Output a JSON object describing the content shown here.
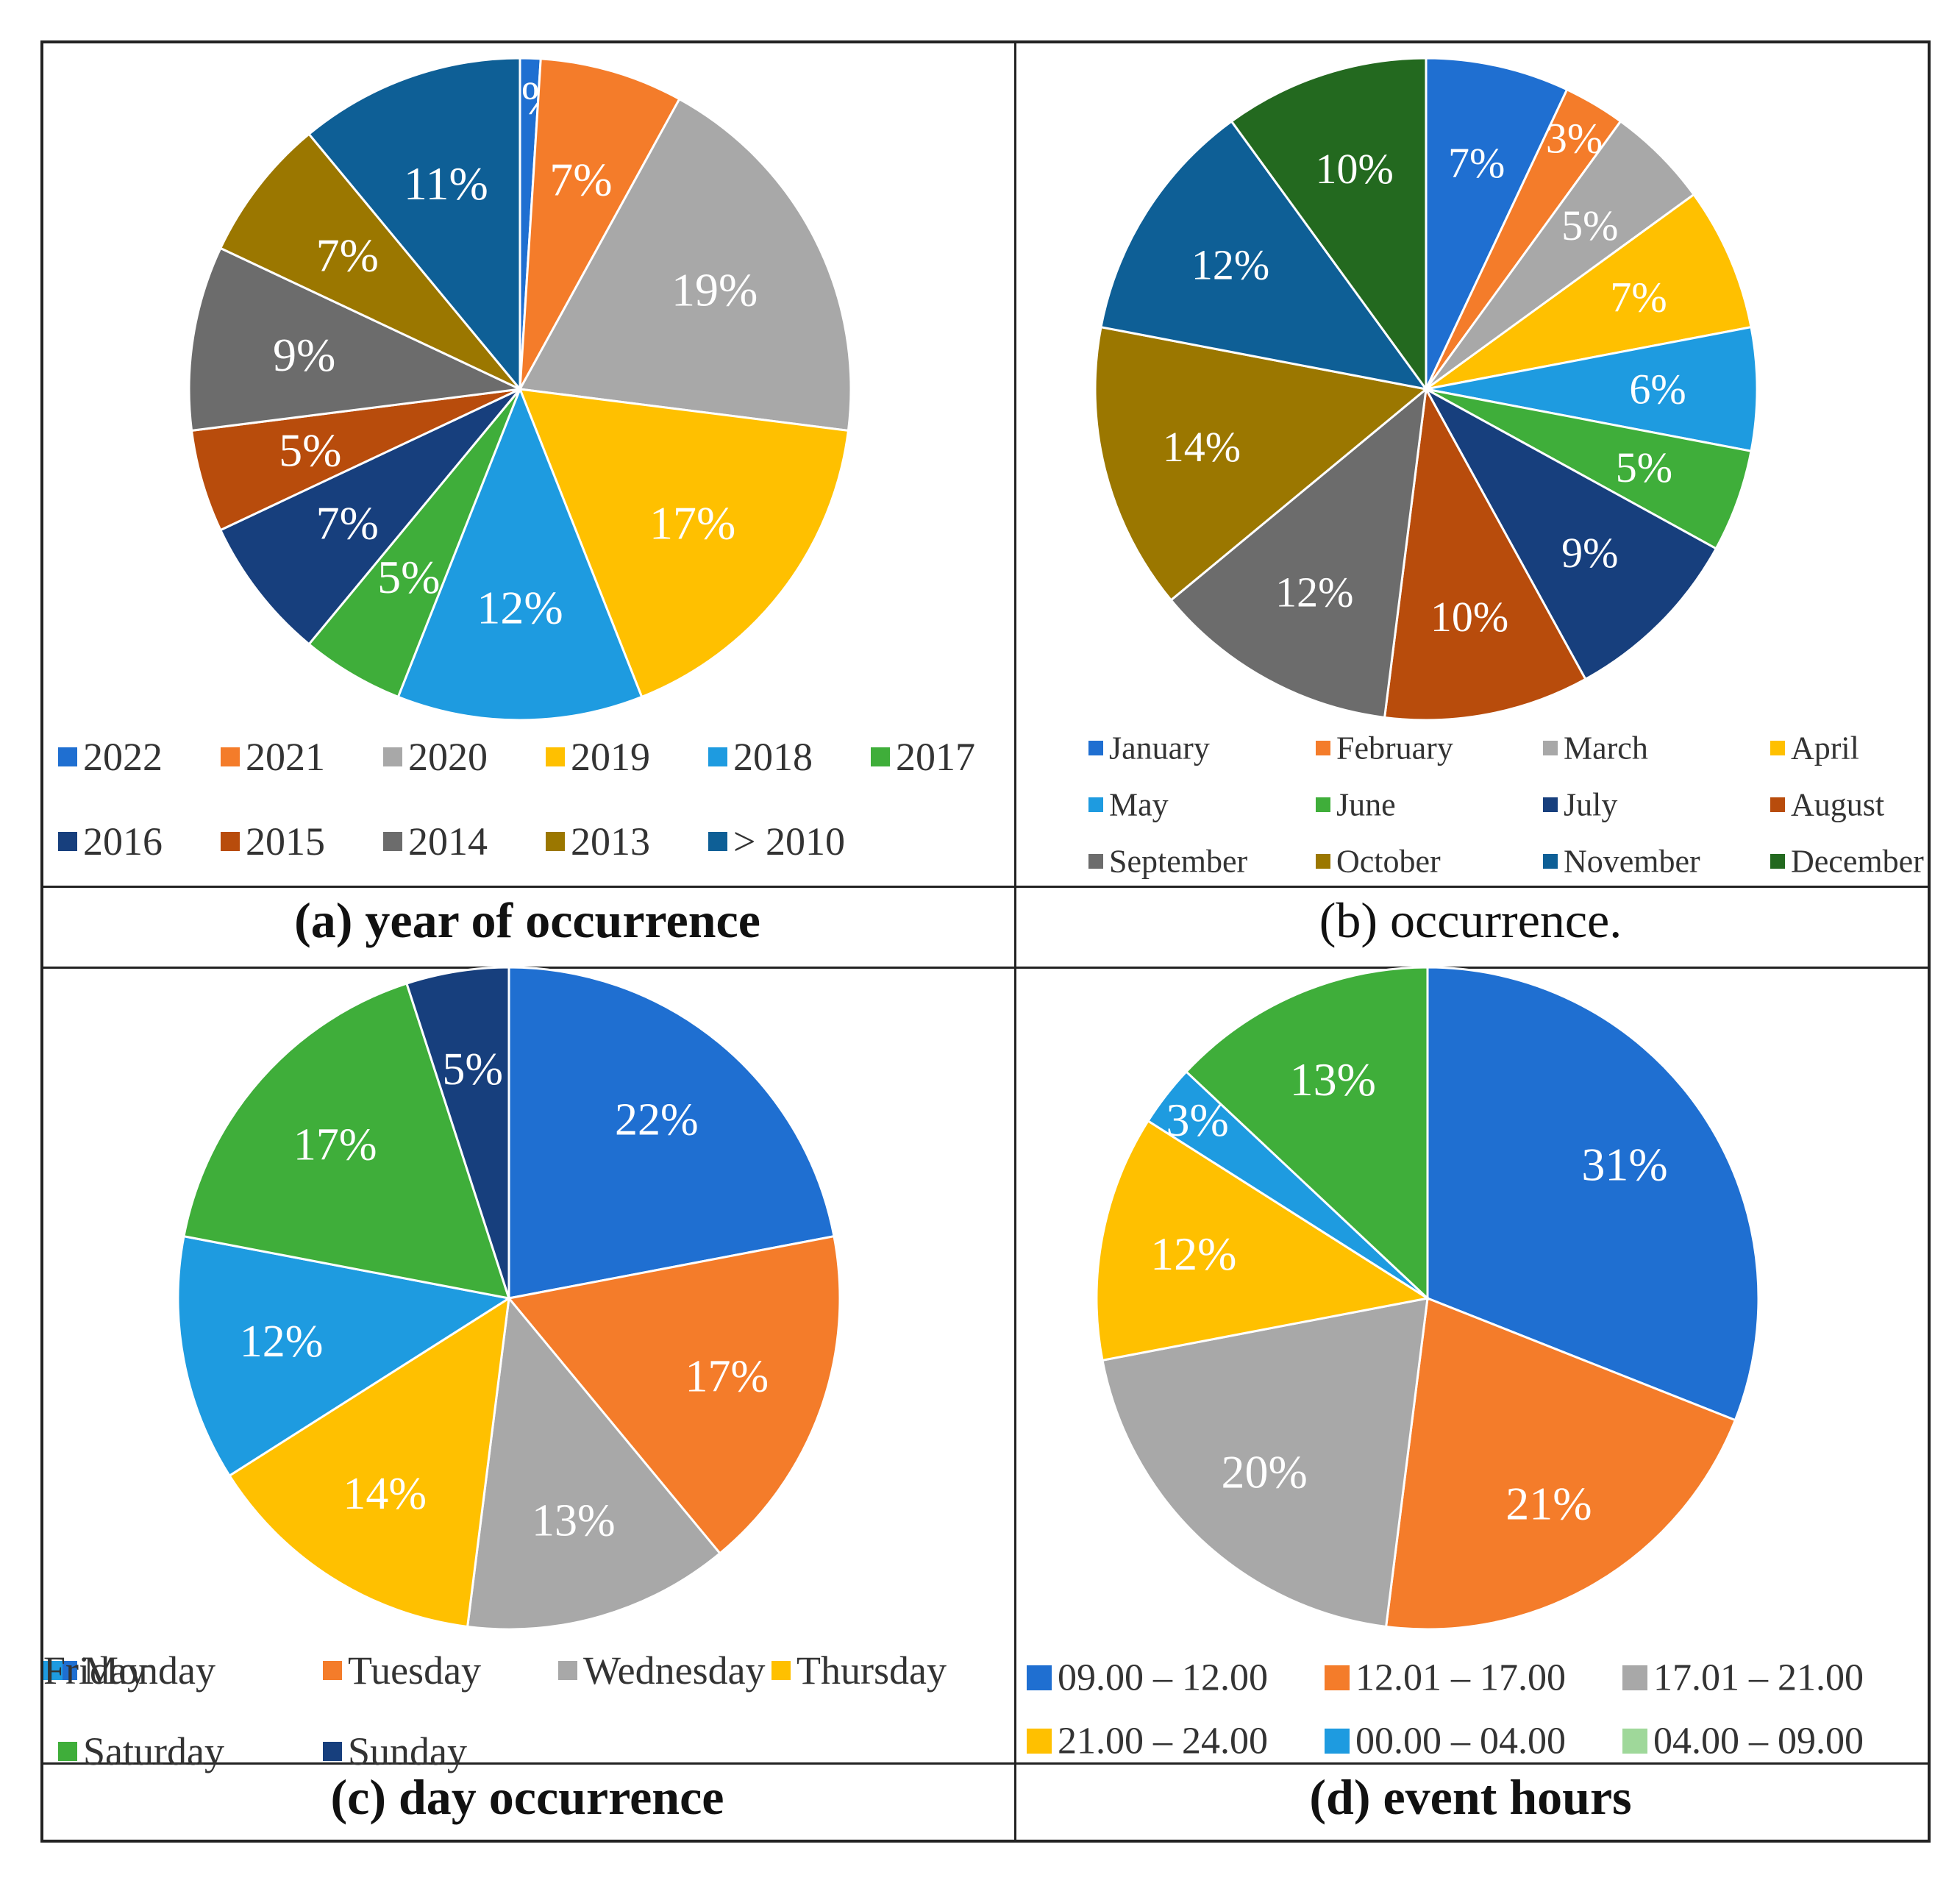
{
  "chart_data": [
    {
      "type": "pie",
      "title": "(a) year of occurrence",
      "categories": [
        "2022",
        "2021",
        "2020",
        "2019",
        "2018",
        "2017",
        "2016",
        "2015",
        "2014",
        "2013",
        "> 2010"
      ],
      "values": [
        1,
        7,
        19,
        17,
        12,
        5,
        7,
        5,
        9,
        7,
        11
      ],
      "labels": [
        "1%",
        "7%",
        "19%",
        "17%",
        "12%",
        "5%",
        "7%",
        "5%",
        "9%",
        "7%",
        "11%"
      ],
      "colors": [
        "#1f6fd1",
        "#f47c2a",
        "#a8a8a8",
        "#ffc000",
        "#1e9be0",
        "#3fae3a",
        "#173f7d",
        "#b84c0c",
        "#6c6c6c",
        "#9b7700",
        "#0e5f96"
      ],
      "legend": "bottom"
    },
    {
      "type": "pie",
      "title": "(b) occurrence.",
      "categories": [
        "January",
        "February",
        "March",
        "April",
        "May",
        "June",
        "July",
        "August",
        "September",
        "October",
        "November",
        "December"
      ],
      "values": [
        7,
        3,
        5,
        7,
        6,
        5,
        9,
        10,
        12,
        14,
        12,
        10
      ],
      "labels": [
        "7%",
        "3%",
        "5%",
        "7%",
        "6%",
        "5%",
        "9%",
        "10%",
        "12%",
        "14%",
        "12%",
        "10%"
      ],
      "colors": [
        "#1f6fd1",
        "#f47c2a",
        "#a8a8a8",
        "#ffc000",
        "#1e9be0",
        "#3fae3a",
        "#173f7d",
        "#b84c0c",
        "#6c6c6c",
        "#9b7700",
        "#0e5f96",
        "#23691f"
      ],
      "legend": "bottom"
    },
    {
      "type": "pie",
      "title": "(c) day occurrence",
      "categories": [
        "Monday",
        "Tuesday",
        "Wednesday",
        "Thursday",
        "Friday",
        "Saturday",
        "Sunday"
      ],
      "values": [
        22,
        17,
        13,
        14,
        12,
        17,
        5
      ],
      "labels": [
        "22%",
        "17%",
        "13%",
        "14%",
        "12%",
        "17%",
        "5%"
      ],
      "colors": [
        "#1f6fd1",
        "#f47c2a",
        "#a8a8a8",
        "#ffc000",
        "#1e9be0",
        "#3fae3a",
        "#173f7d"
      ],
      "legend": "bottom"
    },
    {
      "type": "pie",
      "title": "(d) event hours",
      "categories": [
        "09.00 – 12.00",
        "12.01 – 17.00",
        "17.01 – 21.00",
        "21.00 – 24.00",
        "00.00 – 04.00",
        "04.00 – 09.00"
      ],
      "values": [
        31,
        21,
        20,
        12,
        3,
        13
      ],
      "labels": [
        "31%",
        "21%",
        "20%",
        "12%",
        "3%",
        "13%"
      ],
      "colors": [
        "#1f6fd1",
        "#f47c2a",
        "#a8a8a8",
        "#ffc000",
        "#1e9be0",
        "#3fae3a"
      ],
      "legend_colors": [
        "#1f6fd1",
        "#f47c2a",
        "#a8a8a8",
        "#ffc000",
        "#1e9be0",
        "#9fd89a"
      ],
      "legend": "bottom"
    }
  ]
}
